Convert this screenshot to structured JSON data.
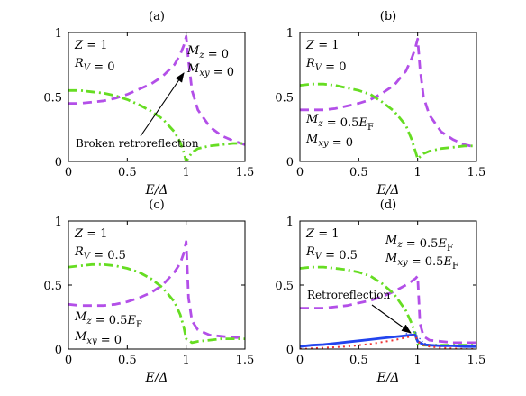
{
  "figure": {
    "xlabel": "E/Δ",
    "x_ticks": [
      "0",
      "0.5",
      "1",
      "1.5"
    ],
    "y_ticks": [
      "0",
      "0.5",
      "1"
    ]
  },
  "colors": {
    "purple": "#b34fe8",
    "green": "#66dd22",
    "blue": "#2244ee",
    "red": "#ee3333",
    "thin_blue": "#8899ff"
  },
  "chart_data": [
    {
      "type": "line",
      "title": "(a)",
      "xlabel": "E/Δ",
      "xlim": [
        0,
        1.5
      ],
      "ylim": [
        0,
        1
      ],
      "annotations": [
        "Z = 1",
        "R_V = 0",
        "M_z = 0",
        "M_xy = 0"
      ],
      "callout": "Broken retroreflection",
      "series": [
        {
          "style": "dashed",
          "color": "purple",
          "x": [
            0,
            0.1,
            0.2,
            0.3,
            0.4,
            0.5,
            0.6,
            0.7,
            0.8,
            0.9,
            0.95,
            0.98,
            1.0,
            1.02,
            1.05,
            1.1,
            1.2,
            1.3,
            1.4,
            1.5
          ],
          "y": [
            0.45,
            0.45,
            0.46,
            0.47,
            0.49,
            0.52,
            0.56,
            0.6,
            0.66,
            0.75,
            0.83,
            0.9,
            0.97,
            0.78,
            0.55,
            0.4,
            0.27,
            0.2,
            0.16,
            0.13
          ]
        },
        {
          "style": "dashdot",
          "color": "green",
          "x": [
            0,
            0.1,
            0.2,
            0.3,
            0.4,
            0.5,
            0.6,
            0.7,
            0.8,
            0.9,
            0.95,
            0.98,
            1.0,
            1.05,
            1.1,
            1.2,
            1.3,
            1.4,
            1.5
          ],
          "y": [
            0.55,
            0.55,
            0.54,
            0.53,
            0.51,
            0.48,
            0.44,
            0.39,
            0.33,
            0.23,
            0.15,
            0.07,
            0.0,
            0.07,
            0.1,
            0.12,
            0.13,
            0.14,
            0.14
          ]
        },
        {
          "style": "solid",
          "color": "thin_blue",
          "x": [
            0,
            1.5
          ],
          "y": [
            0,
            0
          ]
        }
      ]
    },
    {
      "type": "line",
      "title": "(b)",
      "xlabel": "E/Δ",
      "xlim": [
        0,
        1.5
      ],
      "ylim": [
        0,
        1
      ],
      "annotations": [
        "Z = 1",
        "R_V = 0",
        "M_z = 0.5E_F",
        "M_xy = 0"
      ],
      "series": [
        {
          "style": "dashed",
          "color": "purple",
          "x": [
            0,
            0.1,
            0.2,
            0.3,
            0.4,
            0.5,
            0.6,
            0.7,
            0.8,
            0.9,
            0.95,
            0.98,
            1.0,
            1.02,
            1.05,
            1.1,
            1.2,
            1.3,
            1.4,
            1.5
          ],
          "y": [
            0.4,
            0.4,
            0.4,
            0.41,
            0.43,
            0.45,
            0.48,
            0.53,
            0.59,
            0.7,
            0.8,
            0.88,
            0.95,
            0.72,
            0.5,
            0.36,
            0.23,
            0.17,
            0.13,
            0.11
          ]
        },
        {
          "style": "dashdot",
          "color": "green",
          "x": [
            0,
            0.1,
            0.2,
            0.3,
            0.4,
            0.5,
            0.6,
            0.7,
            0.8,
            0.9,
            0.95,
            0.98,
            1.0,
            1.05,
            1.1,
            1.2,
            1.3,
            1.4,
            1.5
          ],
          "y": [
            0.59,
            0.6,
            0.6,
            0.59,
            0.57,
            0.55,
            0.52,
            0.46,
            0.39,
            0.28,
            0.17,
            0.08,
            0.02,
            0.06,
            0.08,
            0.1,
            0.11,
            0.12,
            0.12
          ]
        }
      ]
    },
    {
      "type": "line",
      "title": "(c)",
      "xlabel": "E/Δ",
      "xlim": [
        0,
        1.5
      ],
      "ylim": [
        0,
        1
      ],
      "annotations": [
        "Z = 1",
        "R_V = 0.5",
        "M_z = 0.5E_F",
        "M_xy = 0"
      ],
      "series": [
        {
          "style": "dashed",
          "color": "purple",
          "x": [
            0,
            0.1,
            0.2,
            0.3,
            0.4,
            0.5,
            0.6,
            0.7,
            0.8,
            0.9,
            0.95,
            0.98,
            1.0,
            1.02,
            1.05,
            1.1,
            1.2,
            1.3,
            1.4,
            1.5
          ],
          "y": [
            0.35,
            0.34,
            0.34,
            0.34,
            0.35,
            0.37,
            0.4,
            0.44,
            0.5,
            0.6,
            0.67,
            0.75,
            0.84,
            0.4,
            0.22,
            0.15,
            0.11,
            0.1,
            0.09,
            0.09
          ]
        },
        {
          "style": "dashdot",
          "color": "green",
          "x": [
            0,
            0.1,
            0.2,
            0.3,
            0.4,
            0.5,
            0.6,
            0.7,
            0.8,
            0.9,
            0.95,
            0.98,
            1.0,
            1.05,
            1.1,
            1.2,
            1.3,
            1.4,
            1.5
          ],
          "y": [
            0.64,
            0.65,
            0.66,
            0.66,
            0.65,
            0.63,
            0.6,
            0.55,
            0.48,
            0.37,
            0.27,
            0.17,
            0.08,
            0.05,
            0.06,
            0.07,
            0.08,
            0.08,
            0.08
          ]
        }
      ]
    },
    {
      "type": "line",
      "title": "(d)",
      "xlabel": "E/Δ",
      "xlim": [
        0,
        1.5
      ],
      "ylim": [
        0,
        1
      ],
      "annotations": [
        "Z = 1",
        "R_V = 0.5",
        "M_z = 0.5E_F",
        "M_xy = 0.5E_F"
      ],
      "callout": "Retroreflection",
      "series": [
        {
          "style": "dashed",
          "color": "purple",
          "x": [
            0,
            0.1,
            0.2,
            0.3,
            0.4,
            0.5,
            0.6,
            0.7,
            0.8,
            0.9,
            0.95,
            0.98,
            1.0,
            1.02,
            1.05,
            1.1,
            1.2,
            1.3,
            1.4,
            1.5
          ],
          "y": [
            0.32,
            0.32,
            0.32,
            0.33,
            0.34,
            0.36,
            0.38,
            0.41,
            0.45,
            0.5,
            0.53,
            0.55,
            0.57,
            0.2,
            0.1,
            0.07,
            0.06,
            0.05,
            0.05,
            0.05
          ]
        },
        {
          "style": "dashdot",
          "color": "green",
          "x": [
            0,
            0.1,
            0.2,
            0.3,
            0.4,
            0.5,
            0.6,
            0.7,
            0.8,
            0.9,
            0.95,
            0.98,
            1.0,
            1.05,
            1.1,
            1.2,
            1.3,
            1.4,
            1.5
          ],
          "y": [
            0.63,
            0.64,
            0.64,
            0.63,
            0.62,
            0.6,
            0.57,
            0.51,
            0.43,
            0.3,
            0.2,
            0.12,
            0.04,
            0.03,
            0.03,
            0.03,
            0.03,
            0.03,
            0.03
          ]
        },
        {
          "style": "solid-thick",
          "color": "blue",
          "x": [
            0,
            0.1,
            0.2,
            0.3,
            0.4,
            0.5,
            0.6,
            0.7,
            0.8,
            0.9,
            0.95,
            0.98,
            1.0,
            1.05,
            1.1,
            1.2,
            1.3,
            1.4,
            1.5
          ],
          "y": [
            0.02,
            0.03,
            0.035,
            0.045,
            0.055,
            0.065,
            0.075,
            0.085,
            0.095,
            0.105,
            0.11,
            0.11,
            0.06,
            0.035,
            0.03,
            0.025,
            0.025,
            0.02,
            0.02
          ]
        },
        {
          "style": "dotted",
          "color": "red",
          "x": [
            0,
            0.1,
            0.2,
            0.3,
            0.4,
            0.5,
            0.6,
            0.7,
            0.8,
            0.9,
            0.95,
            0.98,
            1.0,
            1.05,
            1.1,
            1.2,
            1.3,
            1.4,
            1.5
          ],
          "y": [
            0.0,
            0.005,
            0.01,
            0.015,
            0.02,
            0.03,
            0.04,
            0.055,
            0.07,
            0.09,
            0.1,
            0.11,
            0.06,
            0.03,
            0.02,
            0.01,
            0.005,
            0.0,
            0.0
          ]
        },
        {
          "style": "dotted-thin",
          "color": "blue",
          "x": [
            0.9,
            0.95,
            0.98,
            1.0,
            1.05,
            1.1
          ],
          "y": [
            0.12,
            0.13,
            0.14,
            0.1,
            0.05,
            0.03
          ]
        }
      ]
    }
  ]
}
